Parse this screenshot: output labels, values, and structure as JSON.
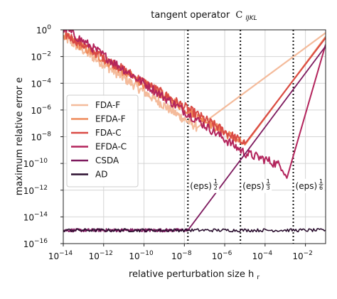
{
  "chart_data": {
    "type": "line",
    "title": "tangent operator",
    "title_symbol": "C",
    "title_subscript": "IJKL",
    "xlabel": "relative perturbation size h",
    "xlabel_subscript": "r",
    "ylabel": "maximum relative error e",
    "xscale": "log",
    "yscale": "log",
    "xlim": [
      1e-14,
      0.1
    ],
    "ylim": [
      1e-16,
      1
    ],
    "x_ticks": [
      {
        "value": 1e-14,
        "base": "10",
        "exp": "−14"
      },
      {
        "value": 1e-12,
        "base": "10",
        "exp": "−12"
      },
      {
        "value": 1e-10,
        "base": "10",
        "exp": "−10"
      },
      {
        "value": 1e-08,
        "base": "10",
        "exp": "−8"
      },
      {
        "value": 1e-06,
        "base": "10",
        "exp": "−6"
      },
      {
        "value": 0.0001,
        "base": "10",
        "exp": "−4"
      },
      {
        "value": 0.01,
        "base": "10",
        "exp": "−2"
      }
    ],
    "y_ticks": [
      {
        "value": 1,
        "base": "10",
        "exp": "0"
      },
      {
        "value": 0.01,
        "base": "10",
        "exp": "−2"
      },
      {
        "value": 0.0001,
        "base": "10",
        "exp": "−4"
      },
      {
        "value": 1e-06,
        "base": "10",
        "exp": "−6"
      },
      {
        "value": 1e-08,
        "base": "10",
        "exp": "−8"
      },
      {
        "value": 1e-10,
        "base": "10",
        "exp": "−10"
      },
      {
        "value": 1e-12,
        "base": "10",
        "exp": "−12"
      },
      {
        "value": 1e-14,
        "base": "10",
        "exp": "−14"
      },
      {
        "value": 1e-16,
        "base": "10",
        "exp": "−16"
      }
    ],
    "grid": true,
    "legend_position": "center-left",
    "series": [
      {
        "name": "FDA-F",
        "color": "#f4bb9b",
        "width": 2.2,
        "trend": [
          [
            1e-14,
            0.3
          ],
          [
            1e-08,
            2e-07
          ],
          [
            4.5e-08,
            5e-08
          ]
        ],
        "clean": [
          [
            4.5e-08,
            5e-08
          ],
          [
            0.1,
            0.6
          ]
        ]
      },
      {
        "name": "EFDA-F",
        "color": "#ee8a5a",
        "width": 2.2,
        "trend": [
          [
            1e-14,
            0.4
          ],
          [
            1e-05,
            2.5e-09
          ]
        ],
        "clean": [
          [
            1e-05,
            2.5e-09
          ],
          [
            0.1,
            0.3
          ]
        ]
      },
      {
        "name": "FDA-C",
        "color": "#d94a45",
        "width": 2.0,
        "trend": [
          [
            1e-14,
            0.6
          ],
          [
            1e-05,
            3e-09
          ]
        ],
        "clean": [
          [
            1e-05,
            3e-09
          ],
          [
            0.1,
            0.25
          ]
        ]
      },
      {
        "name": "EFDA-C",
        "color": "#b3245c",
        "width": 2.0,
        "trend": [
          [
            1e-14,
            1.5
          ],
          [
            1e-05,
            6e-10
          ],
          [
            0.0001,
            2e-10
          ],
          [
            0.0007,
            6e-11
          ],
          [
            0.001,
            1.5e-11
          ]
        ],
        "clean": [
          [
            0.001,
            1.5e-11
          ],
          [
            0.0012,
            8e-12
          ],
          [
            0.1,
            0.08
          ]
        ]
      },
      {
        "name": "CSDA",
        "color": "#7d1a5e",
        "width": 1.8,
        "trend": [
          [
            1e-14,
            1e-15
          ],
          [
            1.5e-08,
            1e-15
          ]
        ],
        "clean": [
          [
            1.5e-08,
            1e-15
          ],
          [
            0.1,
            0.06
          ]
        ]
      },
      {
        "name": "AD",
        "color": "#2b0f2f",
        "width": 1.6,
        "trend": [
          [
            1e-14,
            1e-15
          ],
          [
            0.1,
            1e-15
          ]
        ],
        "clean": []
      }
    ],
    "annotations": [
      {
        "label": "(eps)",
        "exp_num": "1",
        "exp_den": "2",
        "x": 1.5e-08,
        "y_text": 1e-12
      },
      {
        "label": "(eps)",
        "exp_num": "1",
        "exp_den": "3",
        "x": 6e-06,
        "y_text": 1e-12
      },
      {
        "label": "(eps)",
        "exp_num": "1",
        "exp_den": "6",
        "x": 0.0025,
        "y_text": 1e-12
      }
    ]
  }
}
